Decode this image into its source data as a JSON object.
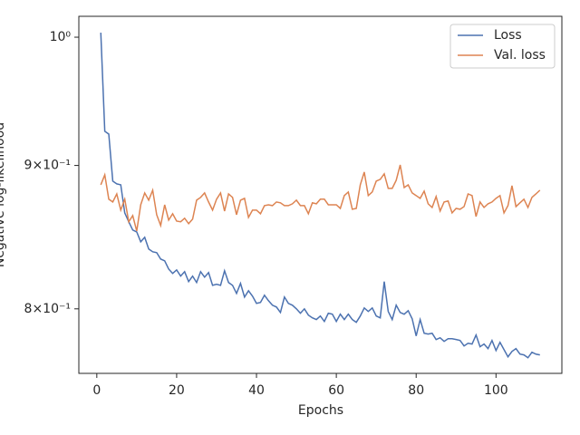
{
  "chart_data": {
    "type": "line",
    "xlabel": "Epochs",
    "ylabel": "Negative log-likelihood",
    "x": [
      1,
      2,
      3,
      4,
      5,
      6,
      7,
      8,
      9,
      10,
      11,
      12,
      13,
      14,
      15,
      16,
      17,
      18,
      19,
      20,
      21,
      22,
      23,
      24,
      25,
      26,
      27,
      28,
      29,
      30,
      31,
      32,
      33,
      34,
      35,
      36,
      37,
      38,
      39,
      40,
      41,
      42,
      43,
      44,
      45,
      46,
      47,
      48,
      49,
      50,
      51,
      52,
      53,
      54,
      55,
      56,
      57,
      58,
      59,
      60,
      61,
      62,
      63,
      64,
      65,
      66,
      67,
      68,
      69,
      70,
      71,
      72,
      73,
      74,
      75,
      76,
      77,
      78,
      79,
      80,
      81,
      82,
      83,
      84,
      85,
      86,
      87,
      88,
      89,
      90,
      91,
      92,
      93,
      94,
      95,
      96,
      97,
      98,
      99,
      100,
      101,
      102,
      103,
      104,
      105,
      106,
      107,
      108,
      109,
      110,
      111
    ],
    "series": [
      {
        "name": "Loss",
        "color": "#4c72b0",
        "values": [
          1.0037,
          0.9256,
          0.9235,
          0.8885,
          0.8865,
          0.8858,
          0.8656,
          0.8593,
          0.8535,
          0.8522,
          0.8453,
          0.8484,
          0.8403,
          0.8384,
          0.8378,
          0.8334,
          0.8322,
          0.8266,
          0.8236,
          0.826,
          0.8218,
          0.8248,
          0.8181,
          0.8218,
          0.8175,
          0.8248,
          0.8211,
          0.8242,
          0.8156,
          0.8163,
          0.8156,
          0.8254,
          0.8175,
          0.8156,
          0.8102,
          0.8169,
          0.8078,
          0.812,
          0.8084,
          0.8036,
          0.8042,
          0.809,
          0.8054,
          0.8024,
          0.8012,
          0.7976,
          0.8078,
          0.8036,
          0.8024,
          0.8,
          0.7971,
          0.8,
          0.7959,
          0.7941,
          0.793,
          0.7953,
          0.7918,
          0.7971,
          0.7965,
          0.7918,
          0.7965,
          0.793,
          0.7965,
          0.793,
          0.7912,
          0.7953,
          0.8006,
          0.7983,
          0.8006,
          0.7953,
          0.7941,
          0.8181,
          0.7983,
          0.793,
          0.8024,
          0.7976,
          0.7965,
          0.7988,
          0.7935,
          0.7824,
          0.793,
          0.7841,
          0.7836,
          0.7841,
          0.7801,
          0.7812,
          0.7789,
          0.7806,
          0.7806,
          0.7801,
          0.7795,
          0.776,
          0.7777,
          0.7772,
          0.783,
          0.7755,
          0.7772,
          0.7743,
          0.7795,
          0.7731,
          0.7783,
          0.7737,
          0.7691,
          0.7725,
          0.7743,
          0.7708,
          0.7703,
          0.7685,
          0.772,
          0.7708,
          0.7703
        ]
      },
      {
        "name": "Val. loss",
        "color": "#dd8452",
        "values": [
          0.8858,
          0.8931,
          0.8754,
          0.8734,
          0.8792,
          0.8676,
          0.8754,
          0.8593,
          0.8637,
          0.8528,
          0.8714,
          0.8799,
          0.8747,
          0.8819,
          0.8643,
          0.8567,
          0.8714,
          0.8605,
          0.865,
          0.8598,
          0.8593,
          0.8618,
          0.858,
          0.8612,
          0.8747,
          0.8767,
          0.8799,
          0.8734,
          0.8676,
          0.8754,
          0.8799,
          0.8669,
          0.8792,
          0.8767,
          0.8643,
          0.8747,
          0.876,
          0.8624,
          0.8676,
          0.8676,
          0.865,
          0.8708,
          0.8714,
          0.8708,
          0.8734,
          0.8728,
          0.8708,
          0.8708,
          0.8721,
          0.8747,
          0.8708,
          0.8708,
          0.865,
          0.8728,
          0.8721,
          0.8754,
          0.8754,
          0.8714,
          0.8714,
          0.8714,
          0.8688,
          0.878,
          0.8806,
          0.8682,
          0.8688,
          0.8858,
          0.8951,
          0.878,
          0.8806,
          0.8885,
          0.8898,
          0.8938,
          0.8832,
          0.8832,
          0.8891,
          0.9004,
          0.8838,
          0.8858,
          0.8799,
          0.878,
          0.876,
          0.8812,
          0.8721,
          0.8695,
          0.8773,
          0.8669,
          0.8734,
          0.8741,
          0.8656,
          0.8688,
          0.8682,
          0.8701,
          0.8792,
          0.878,
          0.863,
          0.8734,
          0.8695,
          0.8721,
          0.8734,
          0.876,
          0.878,
          0.8656,
          0.8708,
          0.8852,
          0.8701,
          0.8728,
          0.8754,
          0.8695,
          0.8767,
          0.8792,
          0.8819
        ]
      }
    ],
    "xlim": [
      -4.5,
      116.5
    ],
    "xticks": [
      0,
      20,
      40,
      60,
      80,
      100
    ],
    "ylim": [
      0.7587,
      1.0173
    ],
    "ylog": true,
    "yticks": [
      {
        "value": 0.8,
        "label": "8×10⁻¹"
      },
      {
        "value": 0.9,
        "label": "9×10⁻¹"
      },
      {
        "value": 1,
        "label": "10⁰"
      }
    ],
    "legend": "upper right"
  }
}
